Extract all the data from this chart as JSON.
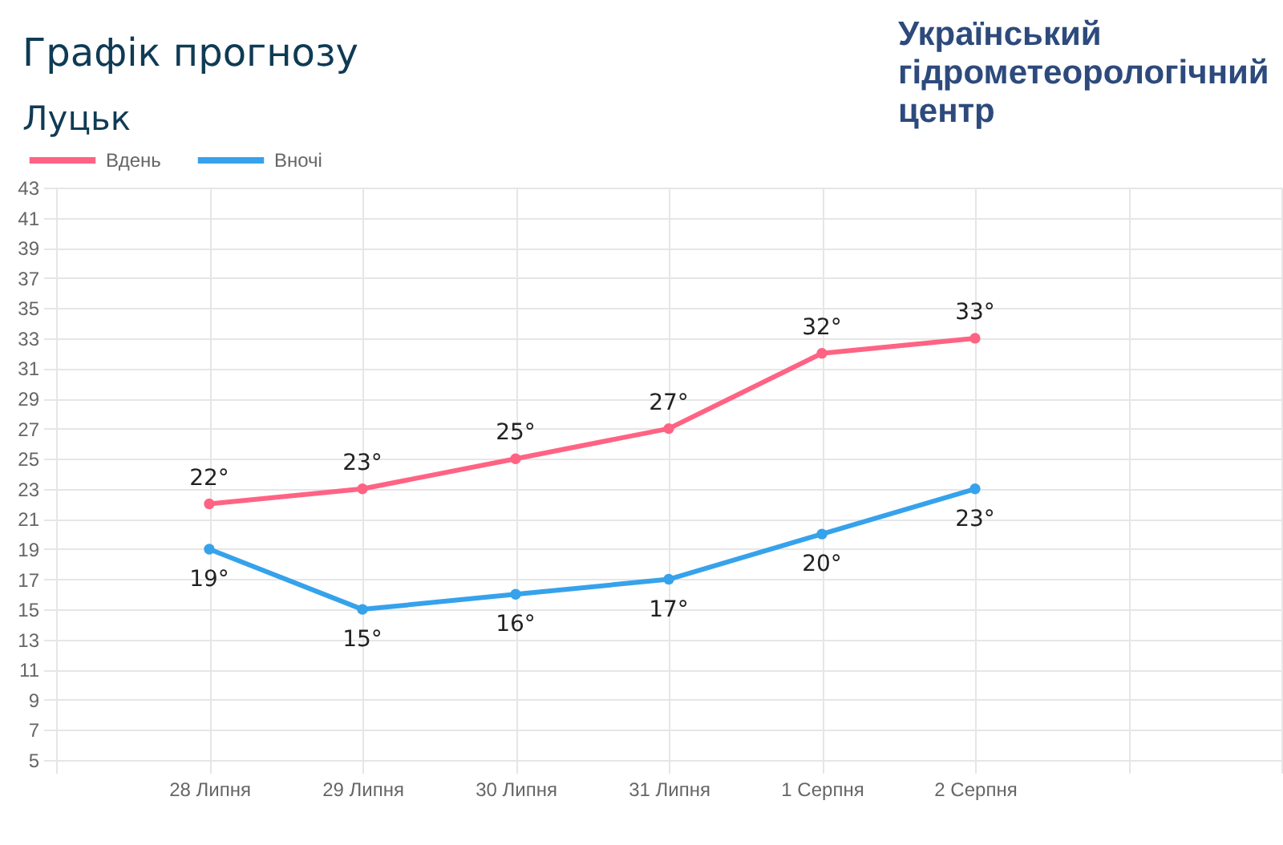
{
  "chart_data": {
    "type": "line",
    "title": "Графік прогнозу",
    "subtitle": "Луцьк",
    "annotations": [
      "Український гідрометеорологічний центр"
    ],
    "categories": [
      null,
      "28 Липня",
      "29 Липня",
      "30 Липня",
      "31 Липня",
      "1 Серпня",
      "2 Серпня",
      null,
      null
    ],
    "series": [
      {
        "name": "Вдень",
        "color": "#ff6384",
        "values": [
          null,
          22,
          23,
          25,
          27,
          32,
          33,
          null,
          null
        ],
        "value_labels": [
          null,
          "22°",
          "23°",
          "25°",
          "27°",
          "32°",
          "33°",
          null,
          null
        ]
      },
      {
        "name": "Вночі",
        "color": "#36a2eb",
        "values": [
          null,
          19,
          15,
          16,
          17,
          20,
          23,
          null,
          null
        ],
        "value_labels": [
          null,
          "19°",
          "15°",
          "16°",
          "17°",
          "20°",
          "23°",
          null,
          null
        ]
      }
    ],
    "ylim": [
      5,
      43
    ],
    "yticks": [
      5,
      7,
      9,
      11,
      13,
      15,
      17,
      19,
      21,
      23,
      25,
      27,
      29,
      31,
      33,
      35,
      37,
      39,
      41,
      43
    ],
    "grid": true,
    "legend": "top left",
    "marker": "circle",
    "line_style": "solid"
  }
}
